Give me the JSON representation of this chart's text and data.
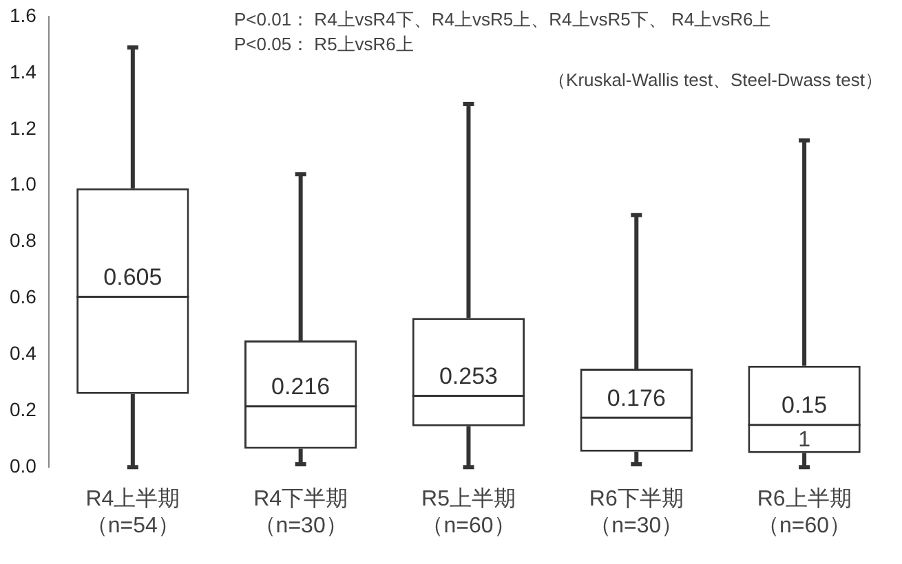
{
  "chart_data": {
    "type": "box",
    "categories": [
      "R4上半期（n=54）",
      "R4下半期（n=30）",
      "R5上半期（n=60）",
      "R6下半期（n=30）",
      "R6上半期（n=60）"
    ],
    "boxes": [
      {
        "low": 0,
        "q1": 0.26,
        "median": 0.605,
        "q3": 0.99,
        "high": 1.49
      },
      {
        "low": 0.01,
        "q1": 0.065,
        "median": 0.216,
        "q3": 0.45,
        "high": 1.04
      },
      {
        "low": 0,
        "q1": 0.145,
        "median": 0.253,
        "q3": 0.53,
        "high": 1.29
      },
      {
        "low": 0.01,
        "q1": 0.055,
        "median": 0.176,
        "q3": 0.35,
        "high": 0.895
      },
      {
        "low": 0,
        "q1": 0.05,
        "median": 0.15,
        "q3": 0.36,
        "high": 1.16
      }
    ],
    "color": "#333333",
    "value_labels": [
      "0.605",
      "0.216",
      "0.253",
      "0.176",
      "0.15"
    ],
    "ylim": [
      0,
      1.6
    ],
    "yticks": [
      {
        "value": 0,
        "label": "0.0"
      },
      {
        "value": 0.2,
        "label": "0.2"
      },
      {
        "value": 0.4,
        "label": "0.4"
      },
      {
        "value": 0.6,
        "label": "0.6"
      },
      {
        "value": 0.8,
        "label": "0.8"
      },
      {
        "value": 1,
        "label": "1.0"
      },
      {
        "value": 1.2,
        "label": "1.2"
      },
      {
        "value": 1.4,
        "label": "1.4"
      },
      {
        "value": 1.6,
        "label": "1.6"
      }
    ],
    "grid": false,
    "legend": false,
    "annotations": [
      "P<0.01： R4上vsR4下、R4上vsR5上、R4上vsR5下、 R4上vsR6上",
      "P<0.05： R5上vsR6上",
      "（Kruskal-Wallis test、Steel-Dwass test）",
      "1"
    ]
  }
}
